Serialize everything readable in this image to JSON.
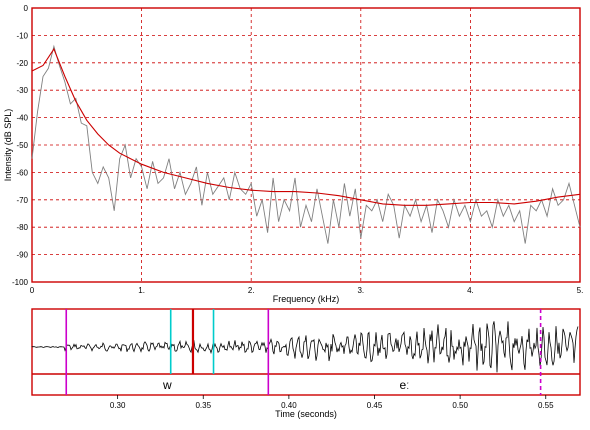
{
  "chart_data": [
    {
      "type": "line",
      "xlabel": "Frequency (kHz)",
      "ylabel": "Intensity (dB SPL)",
      "xlim": [
        0,
        5
      ],
      "ylim": [
        -100,
        0
      ],
      "x_ticks": [
        "0",
        "1.",
        "2.",
        "3.",
        "4.",
        "5."
      ],
      "y_ticks": [
        "0",
        "-10",
        "-20",
        "-30",
        "-40",
        "-50",
        "-60",
        "-70",
        "-80",
        "-90",
        "-100"
      ],
      "grid": true,
      "series": [
        {
          "color": "#808080",
          "x": [
            0,
            0.05,
            0.1,
            0.15,
            0.2,
            0.25,
            0.3,
            0.35,
            0.4,
            0.45,
            0.5,
            0.55,
            0.6,
            0.65,
            0.7,
            0.75,
            0.8,
            0.85,
            0.9,
            0.95,
            1.0,
            1.05,
            1.1,
            1.15,
            1.2,
            1.25,
            1.3,
            1.35,
            1.4,
            1.45,
            1.5,
            1.55,
            1.6,
            1.65,
            1.7,
            1.75,
            1.8,
            1.85,
            1.9,
            1.95,
            2.0,
            2.05,
            2.1,
            2.15,
            2.2,
            2.25,
            2.3,
            2.35,
            2.4,
            2.45,
            2.5,
            2.55,
            2.6,
            2.65,
            2.7,
            2.75,
            2.8,
            2.85,
            2.9,
            2.95,
            3.0,
            3.05,
            3.1,
            3.15,
            3.2,
            3.25,
            3.3,
            3.35,
            3.4,
            3.45,
            3.5,
            3.55,
            3.6,
            3.65,
            3.7,
            3.75,
            3.8,
            3.85,
            3.9,
            3.95,
            4.0,
            4.05,
            4.1,
            4.15,
            4.2,
            4.25,
            4.3,
            4.35,
            4.4,
            4.45,
            4.5,
            4.55,
            4.6,
            4.65,
            4.7,
            4.75,
            4.8,
            4.85,
            4.9,
            4.95,
            5.0
          ],
          "y": [
            -55,
            -38,
            -25,
            -22,
            -14,
            -21,
            -27,
            -35,
            -33,
            -42,
            -43,
            -60,
            -64,
            -58,
            -62,
            -74,
            -55,
            -50,
            -62,
            -55,
            -58,
            -66,
            -56,
            -64,
            -62,
            -55,
            -66,
            -60,
            -68,
            -64,
            -58,
            -72,
            -60,
            -68,
            -65,
            -62,
            -70,
            -60,
            -66,
            -68,
            -64,
            -76,
            -70,
            -82,
            -62,
            -78,
            -70,
            -74,
            -62,
            -80,
            -72,
            -78,
            -66,
            -76,
            -86,
            -70,
            -80,
            -64,
            -76,
            -66,
            -84,
            -72,
            -74,
            -70,
            -78,
            -68,
            -72,
            -84,
            -72,
            -76,
            -70,
            -78,
            -72,
            -82,
            -70,
            -74,
            -80,
            -70,
            -76,
            -72,
            -78,
            -70,
            -76,
            -74,
            -80,
            -70,
            -76,
            -72,
            -78,
            -74,
            -86,
            -72,
            -74,
            -70,
            -76,
            -66,
            -72,
            -70,
            -64,
            -72,
            -80
          ]
        },
        {
          "color": "#cc0000",
          "x": [
            0,
            0.1,
            0.2,
            0.3,
            0.4,
            0.5,
            0.6,
            0.7,
            0.8,
            0.9,
            1.0,
            1.2,
            1.4,
            1.6,
            1.8,
            2.0,
            2.2,
            2.4,
            2.6,
            2.8,
            3.0,
            3.2,
            3.4,
            3.6,
            3.8,
            4.0,
            4.2,
            4.4,
            4.6,
            4.8,
            5.0
          ],
          "y": [
            -23,
            -21,
            -15,
            -25,
            -34,
            -41,
            -46,
            -50,
            -53,
            -55,
            -57,
            -60,
            -62,
            -64,
            -65.5,
            -66.5,
            -67,
            -67,
            -67.5,
            -68.5,
            -70,
            -71.5,
            -72,
            -72,
            -71.5,
            -71,
            -71,
            -71.5,
            -70.5,
            -69,
            -68
          ]
        }
      ]
    },
    {
      "type": "line",
      "xlabel": "Time (seconds)",
      "xlim": [
        0.25,
        0.57
      ],
      "x_ticks": [
        "0.30",
        "0.35",
        "0.40",
        "0.45",
        "0.50",
        "0.55"
      ],
      "segments": [
        {
          "label": "w",
          "start": 0.27,
          "end": 0.388
        },
        {
          "label": "eː",
          "start": 0.388,
          "end": 0.547
        }
      ],
      "markers": [
        {
          "time": 0.27,
          "color": "#cc00cc"
        },
        {
          "time": 0.331,
          "color": "#00cccc"
        },
        {
          "time": 0.344,
          "color": "#cc0000"
        },
        {
          "time": 0.356,
          "color": "#00cccc"
        },
        {
          "time": 0.388,
          "color": "#cc00cc"
        },
        {
          "time": 0.547,
          "color": "#cc00cc"
        }
      ]
    }
  ]
}
